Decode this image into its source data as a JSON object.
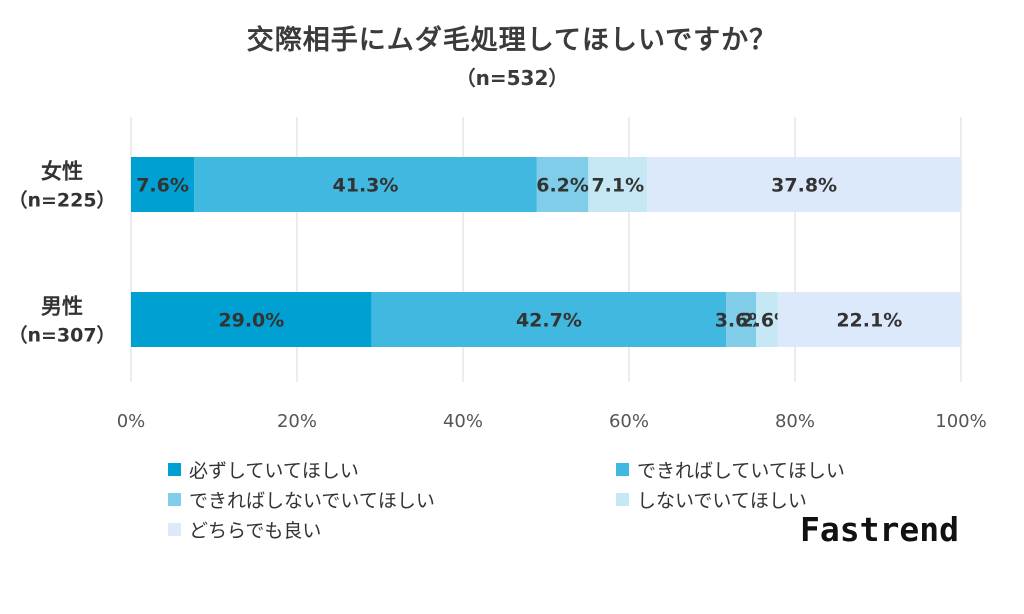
{
  "title": "交際相手にムダ毛処理してほしいですか？",
  "subtitle": "（n=532）",
  "brand": "Fastrend",
  "chart_data": {
    "type": "bar",
    "orientation": "horizontal",
    "stacked": "100%",
    "title": "交際相手にムダ毛処理してほしいですか？",
    "subtitle": "（n=532）",
    "categories": [
      {
        "name": "女性",
        "n": "（n=225）"
      },
      {
        "name": "男性",
        "n": "（n=307）"
      }
    ],
    "series": [
      {
        "name": "必ずしていてほしい",
        "color": "#00a0d2",
        "values": [
          7.6,
          29.0
        ],
        "labels": [
          "7.6%",
          "29.0%"
        ]
      },
      {
        "name": "できればしていてほしい",
        "color": "#41b8df",
        "values": [
          41.3,
          42.7
        ],
        "labels": [
          "41.3%",
          "42.7%"
        ]
      },
      {
        "name": "できればしないでいてほしい",
        "color": "#7fcde9",
        "values": [
          6.2,
          3.6
        ],
        "labels": [
          "6.2%",
          "3.6%"
        ]
      },
      {
        "name": "しないでいてほしい",
        "color": "#c5e8f4",
        "values": [
          7.1,
          2.6
        ],
        "labels": [
          "7.1%",
          "2.6%"
        ]
      },
      {
        "name": "どちらでも良い",
        "color": "#dbe9fb",
        "values": [
          37.8,
          22.1
        ],
        "labels": [
          "37.8%",
          "22.1%"
        ]
      }
    ],
    "xlim": [
      0,
      100
    ],
    "xticks": [
      "0%",
      "20%",
      "40%",
      "60%",
      "80%",
      "100%"
    ],
    "grid": true,
    "legend_position": "bottom"
  }
}
